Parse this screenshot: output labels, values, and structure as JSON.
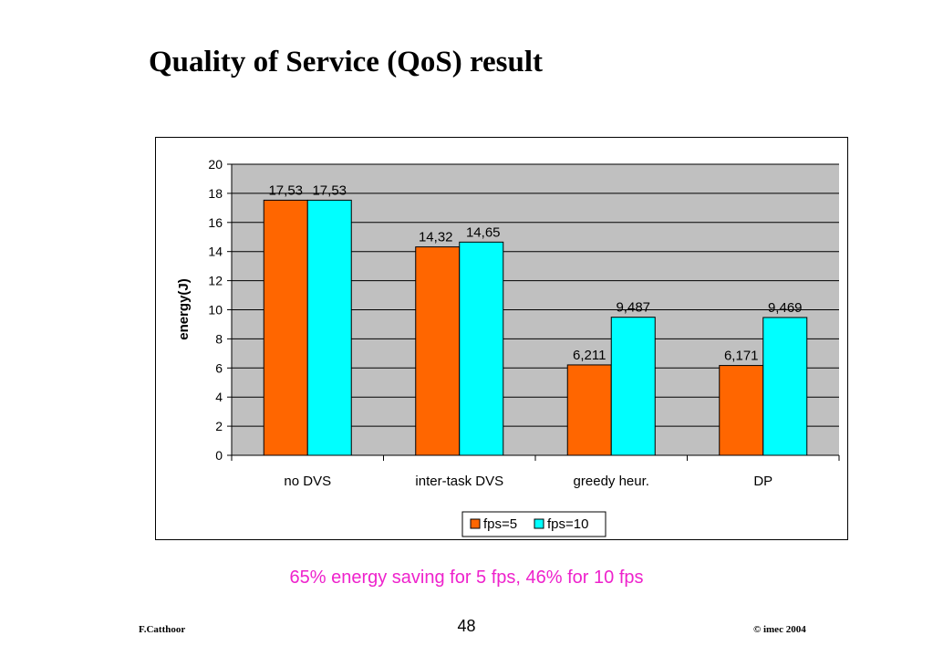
{
  "slide": {
    "title": "Quality of Service (QoS) result",
    "caption": "65% energy saving for 5 fps, 46% for 10 fps",
    "footer_author": "F.Catthoor",
    "footer_page": "48",
    "footer_copyright": "© imec 2004"
  },
  "colors": {
    "series_fps5": "#ff6600",
    "series_fps10": "#00ffff",
    "plot_background": "#c0c0c0",
    "caption": "#ee22cc"
  },
  "chart_data": {
    "type": "bar",
    "title": "",
    "xlabel": "",
    "ylabel": "energy(J)",
    "ylim": [
      0,
      20
    ],
    "yticks": [
      0,
      2,
      4,
      6,
      8,
      10,
      12,
      14,
      16,
      18,
      20
    ],
    "grid": true,
    "legend_position": "bottom",
    "categories": [
      "no DVS",
      "inter-task DVS",
      "greedy heur.",
      "DP"
    ],
    "series": [
      {
        "name": "fps=5",
        "values": [
          17.53,
          14.32,
          6.211,
          6.171
        ],
        "labels": [
          "17,53",
          "14,32",
          "6,211",
          "6,171"
        ]
      },
      {
        "name": "fps=10",
        "values": [
          17.53,
          14.65,
          9.487,
          9.469
        ],
        "labels": [
          "17,53",
          "14,65",
          "9,487",
          "9,469"
        ]
      }
    ]
  }
}
